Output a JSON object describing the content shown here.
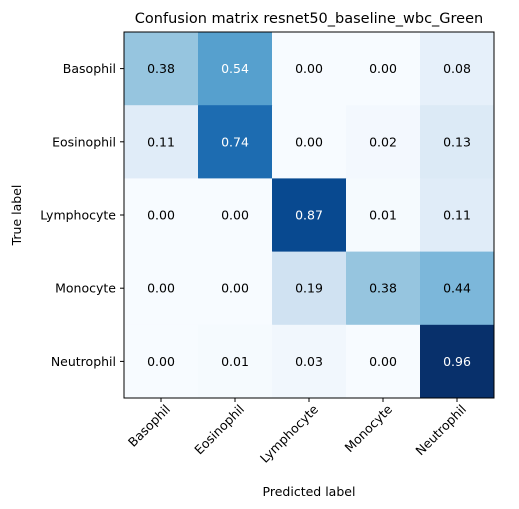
{
  "chart_data": {
    "type": "heatmap",
    "title": "Confusion matrix resnet50_baseline_wbc_Green",
    "xlabel": "Predicted label",
    "ylabel": "True label",
    "x_categories": [
      "Basophil",
      "Eosinophil",
      "Lymphocyte",
      "Monocyte",
      "Neutrophil"
    ],
    "y_categories": [
      "Basophil",
      "Eosinophil",
      "Lymphocyte",
      "Monocyte",
      "Neutrophil"
    ],
    "values": [
      [
        0.38,
        0.54,
        0.0,
        0.0,
        0.08
      ],
      [
        0.11,
        0.74,
        0.0,
        0.02,
        0.13
      ],
      [
        0.0,
        0.0,
        0.87,
        0.01,
        0.11
      ],
      [
        0.0,
        0.0,
        0.19,
        0.38,
        0.44
      ],
      [
        0.0,
        0.01,
        0.03,
        0.0,
        0.96
      ]
    ],
    "value_range": [
      0,
      0.96
    ],
    "colormap": "Blues",
    "grid": false
  }
}
